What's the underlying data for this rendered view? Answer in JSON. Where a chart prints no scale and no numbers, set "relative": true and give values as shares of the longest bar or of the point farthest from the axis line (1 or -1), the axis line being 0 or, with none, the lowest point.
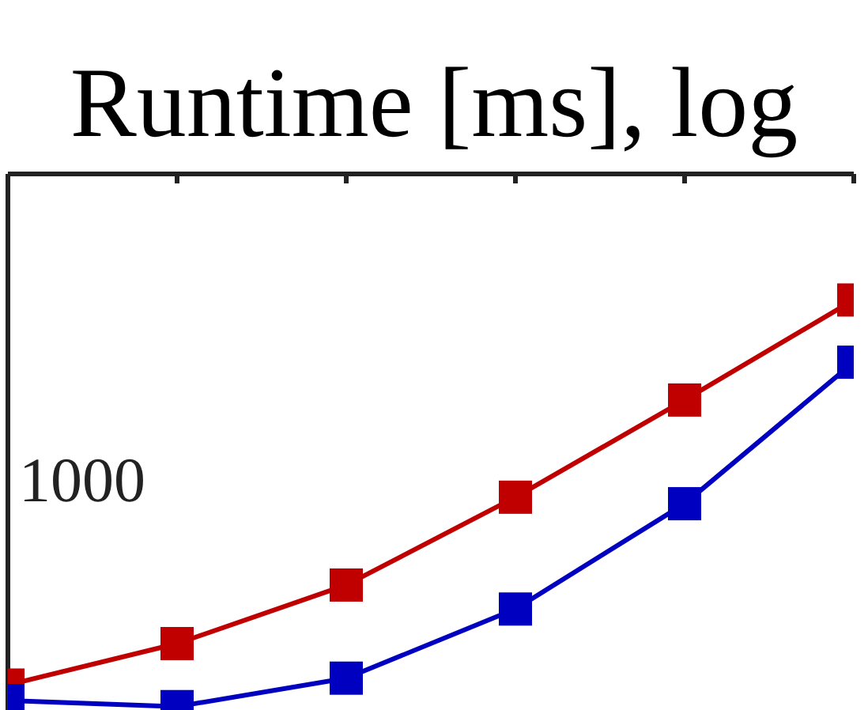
{
  "chart_data": {
    "type": "line",
    "title": "Runtime [ms], log",
    "relative": true,
    "categories": [
      null,
      null,
      null,
      null,
      null,
      null
    ],
    "series": [
      {
        "color": "#c00000",
        "values": [
          0.053,
          0.155,
          0.299,
          0.515,
          0.754,
          1
        ]
      },
      {
        "color": "#0000c0",
        "values": [
          0.015,
          0,
          0.07,
          0.24,
          0.499,
          0.847
        ]
      }
    ],
    "annotations": [
      "1000"
    ],
    "marker": "square",
    "line_style": "solid"
  }
}
